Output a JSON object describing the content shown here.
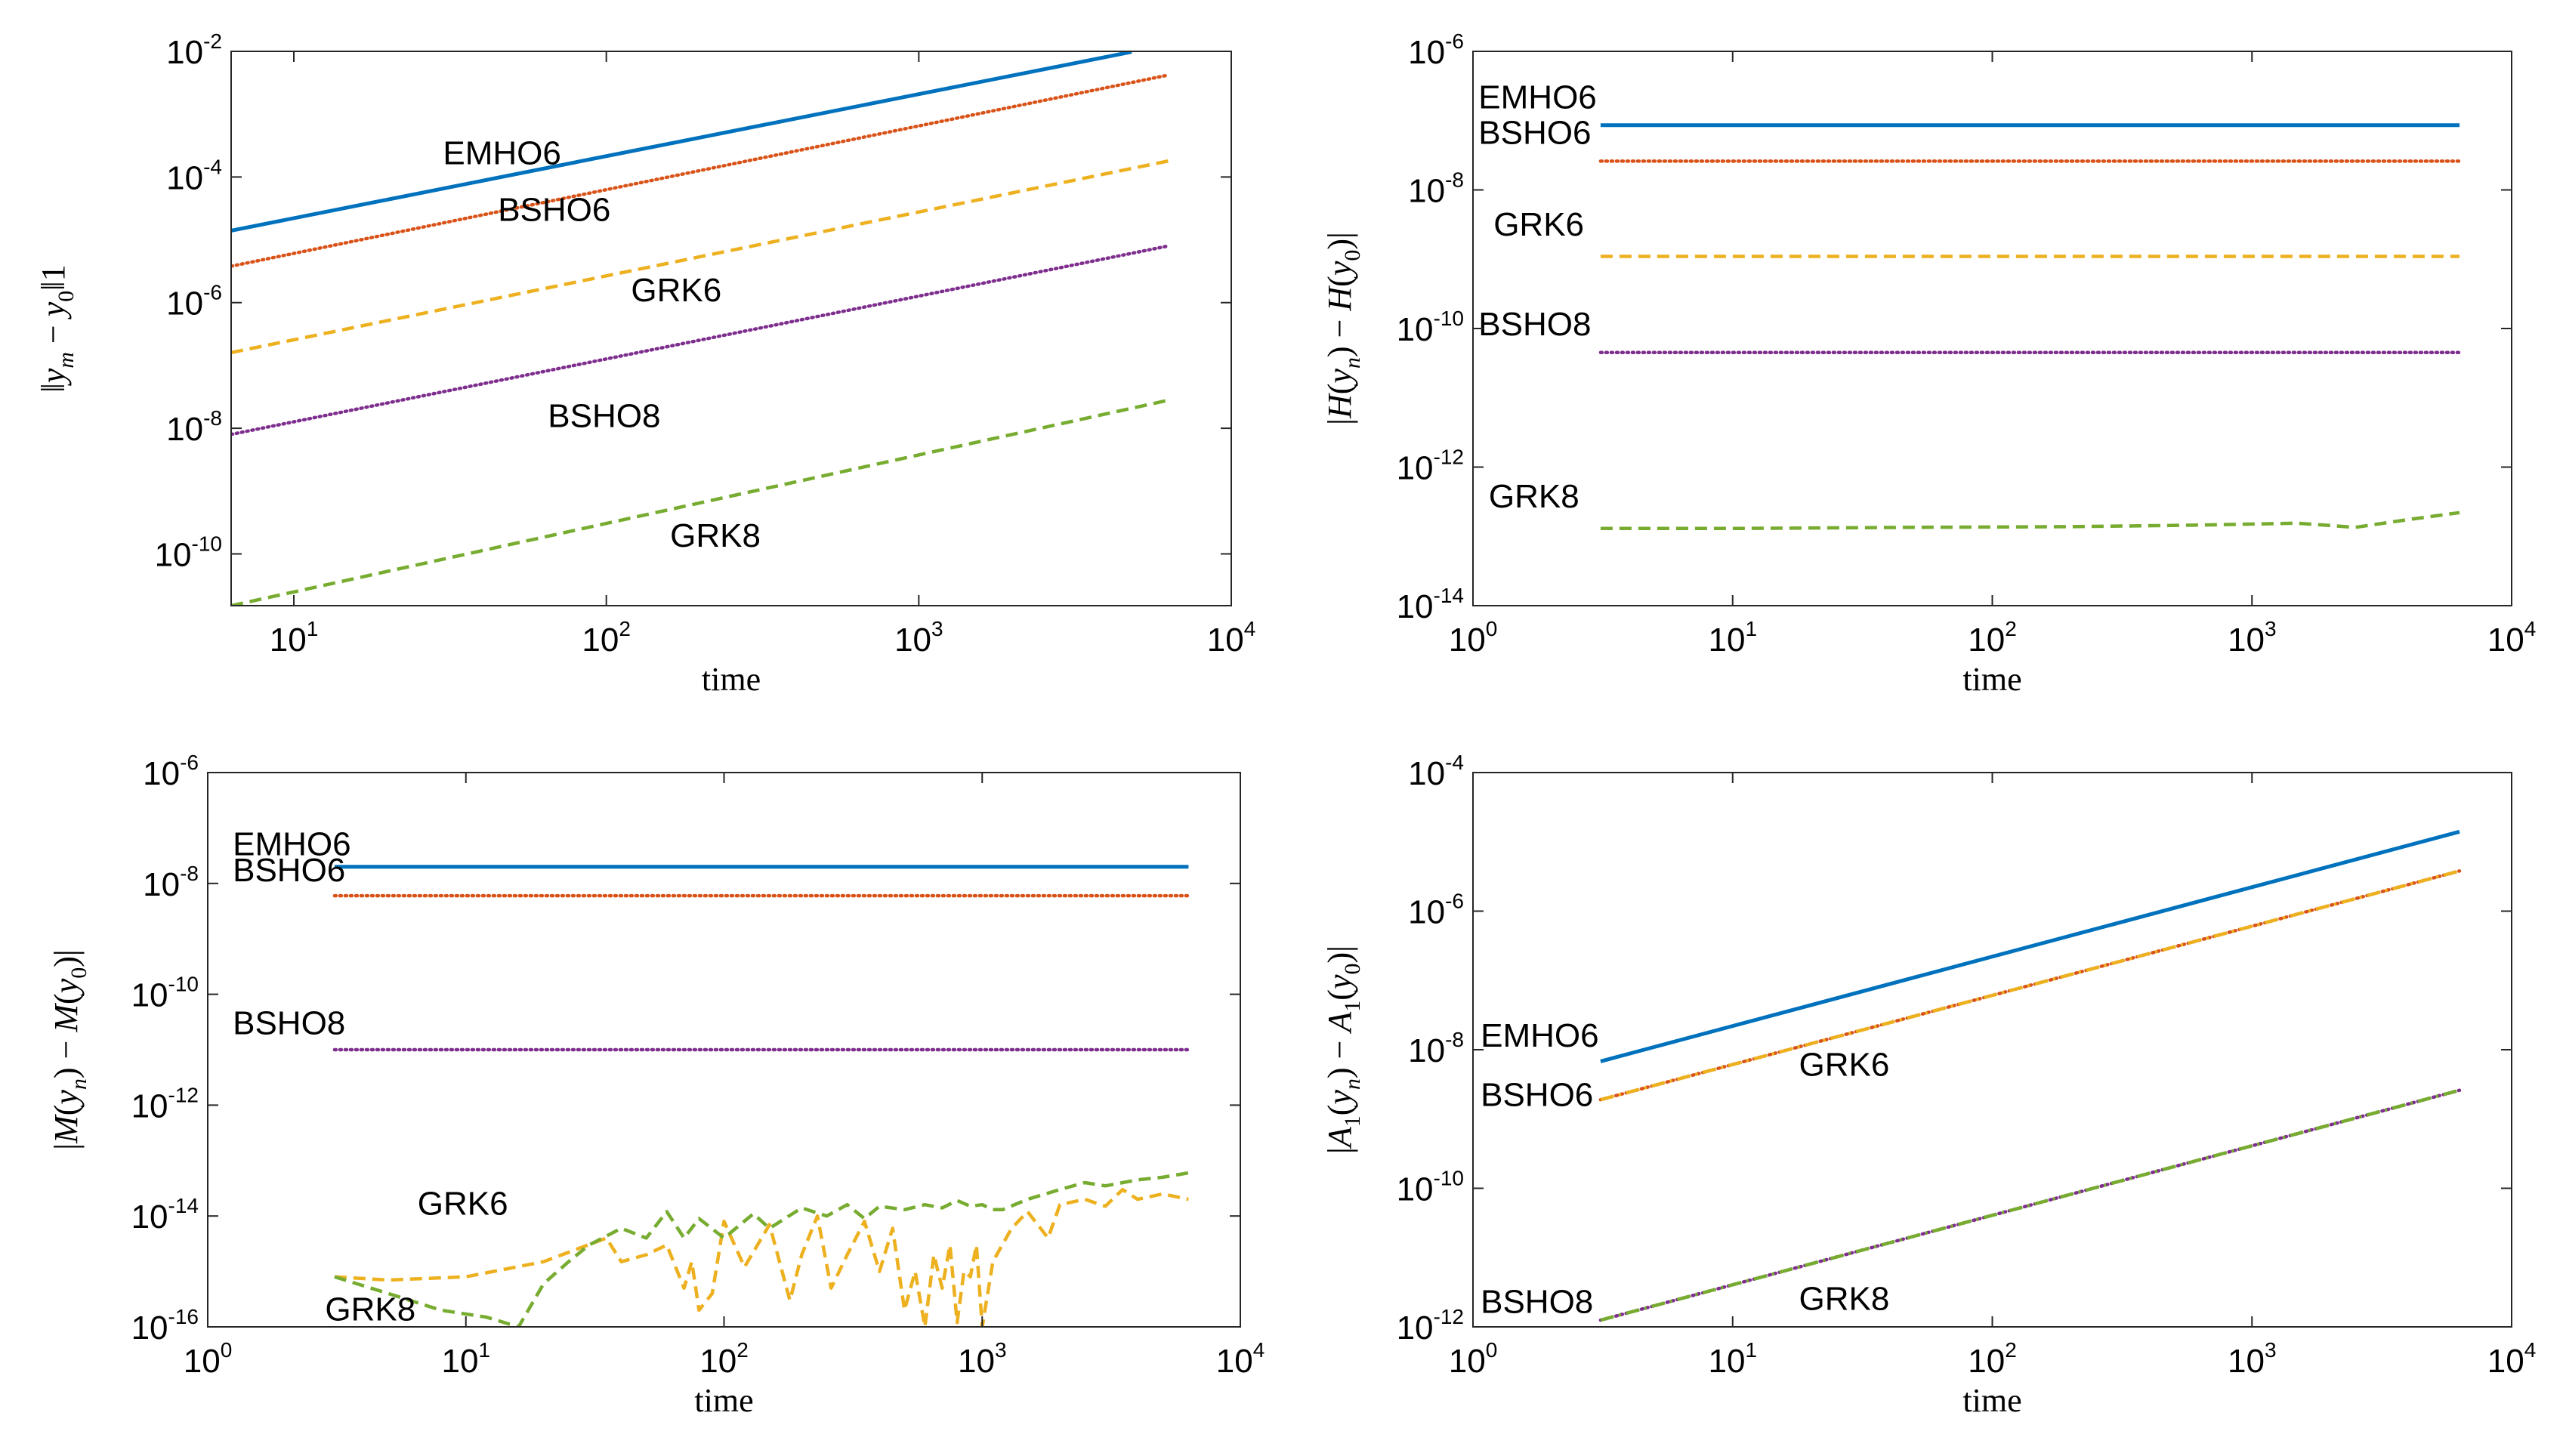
{
  "colors": {
    "blue": "#0072BD",
    "orange": "#D95319",
    "yellow": "#EDB120",
    "purple": "#7E2F8E",
    "green": "#77AC30"
  },
  "chart_data": [
    {
      "type": "line",
      "xscale": "log",
      "yscale": "log",
      "xlabel": "time",
      "ylabel": "‖y_m − y_0‖_1",
      "xlim": [
        6.3,
        10000
      ],
      "ylim": [
        1.5e-11,
        0.01
      ],
      "xticks": [
        {
          "base": "10",
          "exp": "1",
          "v": 10
        },
        {
          "base": "10",
          "exp": "2",
          "v": 100
        },
        {
          "base": "10",
          "exp": "3",
          "v": 1000
        },
        {
          "base": "10",
          "exp": "4",
          "v": 10000
        }
      ],
      "yticks": [
        {
          "base": "10",
          "exp": "-2",
          "v": 0.01
        },
        {
          "base": "10",
          "exp": "-4",
          "v": 0.0001
        },
        {
          "base": "10",
          "exp": "-6",
          "v": 1e-06
        },
        {
          "base": "10",
          "exp": "-8",
          "v": 1e-08
        },
        {
          "base": "10",
          "exp": "-10",
          "v": 1e-10
        }
      ],
      "series": [
        {
          "name": "EMHO6",
          "color": "blue",
          "style": "solid",
          "x": [
            6.3,
            4800
          ],
          "y": [
            1.4e-05,
            0.0098
          ],
          "label_at": [
            30,
            0.00016
          ]
        },
        {
          "name": "BSHO6",
          "color": "orange",
          "style": "dotted",
          "x": [
            6.3,
            6300
          ],
          "y": [
            3.8e-06,
            0.0042
          ],
          "label_at": [
            45,
            2e-05
          ]
        },
        {
          "name": "GRK6",
          "color": "yellow",
          "style": "dashed",
          "x": [
            6.3,
            6300
          ],
          "y": [
            1.6e-07,
            0.00018
          ],
          "label_at": [
            120,
            1.05e-06
          ]
        },
        {
          "name": "BSHO8",
          "color": "purple",
          "style": "dotted",
          "x": [
            6.3,
            6300
          ],
          "y": [
            8e-09,
            8e-06
          ],
          "label_at": [
            65,
            1.05e-08
          ]
        },
        {
          "name": "GRK8",
          "color": "green",
          "style": "dashed",
          "x": [
            6.3,
            6300
          ],
          "y": [
            1.5e-11,
            2.8e-08
          ],
          "label_at": [
            160,
            1.3e-10
          ]
        }
      ]
    },
    {
      "type": "line",
      "xscale": "log",
      "yscale": "log",
      "xlabel": "time",
      "ylabel": "|H(y_n) − H(y_0)|",
      "xlim": [
        1,
        10000
      ],
      "ylim": [
        1e-14,
        1e-06
      ],
      "xticks": [
        {
          "base": "10",
          "exp": "0",
          "v": 1
        },
        {
          "base": "10",
          "exp": "1",
          "v": 10
        },
        {
          "base": "10",
          "exp": "2",
          "v": 100
        },
        {
          "base": "10",
          "exp": "3",
          "v": 1000
        },
        {
          "base": "10",
          "exp": "4",
          "v": 10000
        }
      ],
      "yticks": [
        {
          "base": "10",
          "exp": "-6",
          "v": 1e-06
        },
        {
          "base": "10",
          "exp": "-8",
          "v": 1e-08
        },
        {
          "base": "10",
          "exp": "-10",
          "v": 1e-10
        },
        {
          "base": "10",
          "exp": "-12",
          "v": 1e-12
        },
        {
          "base": "10",
          "exp": "-14",
          "v": 1e-14
        }
      ],
      "series": [
        {
          "name": "EMHO6",
          "color": "blue",
          "style": "solid",
          "x": [
            3.1,
            6300
          ],
          "y": [
            8.6e-08,
            8.6e-08
          ],
          "label_at": [
            1.05,
            1.5e-07
          ]
        },
        {
          "name": "BSHO6",
          "color": "orange",
          "style": "dotted",
          "x": [
            3.1,
            6300
          ],
          "y": [
            2.6e-08,
            2.6e-08
          ],
          "label_at": [
            1.05,
            4.6e-08
          ]
        },
        {
          "name": "GRK6",
          "color": "yellow",
          "style": "dashed",
          "x": [
            3.1,
            6300
          ],
          "y": [
            1.1e-09,
            1.1e-09
          ],
          "label_at": [
            1.2,
            2.2e-09
          ]
        },
        {
          "name": "BSHO8",
          "color": "purple",
          "style": "dotted",
          "x": [
            3.1,
            6300
          ],
          "y": [
            4.5e-11,
            4.5e-11
          ],
          "label_at": [
            1.05,
            8e-11
          ]
        },
        {
          "name": "GRK8",
          "color": "green",
          "style": "dashed",
          "x": [
            3.1,
            10,
            50,
            200,
            600,
            1500,
            2500,
            4000,
            6300
          ],
          "y": [
            1.3e-13,
            1.3e-13,
            1.35e-13,
            1.38e-13,
            1.45e-13,
            1.55e-13,
            1.35e-13,
            1.75e-13,
            2.2e-13
          ],
          "label_at": [
            1.15,
            2.6e-13
          ]
        }
      ]
    },
    {
      "type": "line",
      "xscale": "log",
      "yscale": "log",
      "xlabel": "time",
      "ylabel": "|M(y_n) − M(y_0)|",
      "xlim": [
        1,
        10000
      ],
      "ylim": [
        1e-16,
        1e-06
      ],
      "xticks": [
        {
          "base": "10",
          "exp": "0",
          "v": 1
        },
        {
          "base": "10",
          "exp": "1",
          "v": 10
        },
        {
          "base": "10",
          "exp": "2",
          "v": 100
        },
        {
          "base": "10",
          "exp": "3",
          "v": 1000
        },
        {
          "base": "10",
          "exp": "4",
          "v": 10000
        }
      ],
      "yticks": [
        {
          "base": "10",
          "exp": "-6",
          "v": 1e-06
        },
        {
          "base": "10",
          "exp": "-8",
          "v": 1e-08
        },
        {
          "base": "10",
          "exp": "-10",
          "v": 1e-10
        },
        {
          "base": "10",
          "exp": "-12",
          "v": 1e-12
        },
        {
          "base": "10",
          "exp": "-14",
          "v": 1e-14
        },
        {
          "base": "10",
          "exp": "-16",
          "v": 1e-16
        }
      ],
      "series": [
        {
          "name": "EMHO6",
          "color": "blue",
          "style": "solid",
          "x": [
            3.1,
            6300
          ],
          "y": [
            2e-08,
            2e-08
          ],
          "label_at": [
            1.25,
            3.2e-08
          ]
        },
        {
          "name": "BSHO6",
          "color": "orange",
          "style": "dotted",
          "x": [
            3.1,
            6300
          ],
          "y": [
            6e-09,
            6e-09
          ],
          "label_at": [
            1.25,
            1.1e-08
          ]
        },
        {
          "name": "BSHO8",
          "color": "purple",
          "style": "dotted",
          "x": [
            3.1,
            6300
          ],
          "y": [
            1e-11,
            1e-11
          ],
          "label_at": [
            1.25,
            1.9e-11
          ]
        },
        {
          "name": "GRK6",
          "color": "yellow",
          "style": "dashed",
          "x": [
            3.1,
            5,
            10,
            20,
            35,
            40,
            50,
            60,
            70,
            75,
            80,
            90,
            100,
            120,
            150,
            180,
            200,
            230,
            260,
            300,
            350,
            400,
            450,
            500,
            550,
            600,
            650,
            700,
            750,
            800,
            850,
            900,
            950,
            1000,
            1100,
            1300,
            1500,
            1800,
            2000,
            2500,
            3000,
            3500,
            4000,
            5000,
            6300
          ],
          "y": [
            8e-16,
            7e-16,
            8e-16,
            1.5e-15,
            4e-15,
            1.5e-15,
            2e-15,
            3e-15,
            5e-16,
            1.5e-15,
            2e-16,
            4e-16,
            8e-15,
            1.2e-15,
            7e-15,
            3e-16,
            2e-15,
            1e-14,
            5e-16,
            2e-15,
            8e-15,
            1e-15,
            6e-15,
            2e-16,
            1e-15,
            1e-16,
            2e-15,
            5e-16,
            3e-15,
            1.2e-16,
            1e-15,
            8e-16,
            3e-15,
            1e-16,
            1.5e-15,
            6e-15,
            1.2e-14,
            4e-15,
            1.6e-14,
            2e-14,
            1.5e-14,
            3e-14,
            2e-14,
            2.5e-14,
            2e-14
          ],
          "label_at": [
            6.5,
            1.05e-14
          ]
        },
        {
          "name": "GRK8",
          "color": "green",
          "style": "dashed",
          "x": [
            3.1,
            5,
            8,
            12,
            16,
            20,
            25,
            30,
            40,
            50,
            60,
            70,
            80,
            100,
            130,
            150,
            200,
            250,
            300,
            350,
            400,
            500,
            600,
            700,
            800,
            900,
            1000,
            1100,
            1200,
            1500,
            2000,
            2500,
            3000,
            4000,
            5000,
            6300
          ],
          "y": [
            8e-16,
            4e-16,
            2e-16,
            1.5e-16,
            1e-16,
            6e-16,
            1.5e-15,
            3e-15,
            6e-15,
            4e-15,
            1.2e-14,
            4e-15,
            9e-15,
            4e-15,
            1.1e-14,
            6e-15,
            1.4e-14,
            1e-14,
            1.6e-14,
            9e-15,
            1.5e-14,
            1.3e-14,
            1.6e-14,
            1.4e-14,
            1.9e-14,
            1.5e-14,
            1.6e-14,
            1.3e-14,
            1.3e-14,
            2e-14,
            3e-14,
            4e-14,
            3.5e-14,
            4.5e-14,
            5e-14,
            6e-14
          ],
          "label_at": [
            2.85,
            1.3e-16
          ]
        }
      ]
    },
    {
      "type": "line",
      "xscale": "log",
      "yscale": "log",
      "xlabel": "time",
      "ylabel": "|A_1(y_n) − A_1(y_0)|",
      "xlim": [
        1,
        10000
      ],
      "ylim": [
        1e-12,
        0.0001
      ],
      "xticks": [
        {
          "base": "10",
          "exp": "0",
          "v": 1
        },
        {
          "base": "10",
          "exp": "1",
          "v": 10
        },
        {
          "base": "10",
          "exp": "2",
          "v": 100
        },
        {
          "base": "10",
          "exp": "3",
          "v": 1000
        },
        {
          "base": "10",
          "exp": "4",
          "v": 10000
        }
      ],
      "yticks": [
        {
          "base": "10",
          "exp": "-4",
          "v": 0.0001
        },
        {
          "base": "10",
          "exp": "-6",
          "v": 1e-06
        },
        {
          "base": "10",
          "exp": "-8",
          "v": 1e-08
        },
        {
          "base": "10",
          "exp": "-10",
          "v": 1e-10
        },
        {
          "base": "10",
          "exp": "-12",
          "v": 1e-12
        }
      ],
      "series": [
        {
          "name": "EMHO6",
          "color": "blue",
          "style": "solid",
          "x": [
            3.1,
            6300
          ],
          "y": [
            6.8e-09,
            1.4e-05
          ],
          "label_at": [
            1.07,
            1.1e-08
          ]
        },
        {
          "name": "BSHO6",
          "color": "orange",
          "style": "dotted",
          "x": [
            3.1,
            6300
          ],
          "y": [
            1.9e-09,
            3.8e-06
          ],
          "label_at": [
            1.07,
            1.55e-09
          ]
        },
        {
          "name": "GRK6",
          "color": "yellow",
          "style": "dashdot",
          "x": [
            3.1,
            6300
          ],
          "y": [
            1.9e-09,
            3.8e-06
          ],
          "label_at": [
            18,
            4.2e-09
          ]
        },
        {
          "name": "BSHO8",
          "color": "purple",
          "style": "dotted",
          "x": [
            3.1,
            6300
          ],
          "y": [
            1.25e-12,
            2.6e-09
          ],
          "label_at": [
            1.07,
            1.6e-12
          ]
        },
        {
          "name": "GRK8",
          "color": "green",
          "style": "dashdot",
          "x": [
            3.1,
            6300
          ],
          "y": [
            1.25e-12,
            2.6e-09
          ],
          "label_at": [
            18,
            1.75e-12
          ]
        }
      ]
    }
  ]
}
